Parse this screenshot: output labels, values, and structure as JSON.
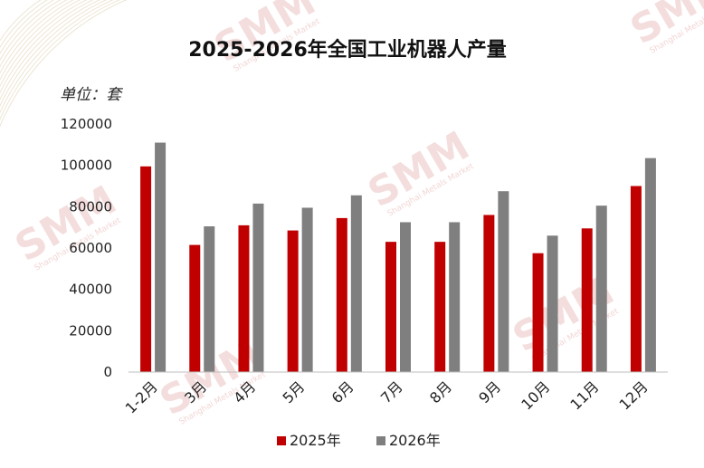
{
  "watermark": {
    "brand": "SMM",
    "tagline": "Shanghai Metals Market"
  },
  "chart_data": {
    "type": "bar",
    "title": "2025-2026年全国工业机器人产量",
    "unit_label": "单位：套",
    "categories": [
      "1-2月",
      "3月",
      "4月",
      "5月",
      "6月",
      "7月",
      "8月",
      "9月",
      "10月",
      "11月",
      "12月"
    ],
    "series": [
      {
        "name": "2025年",
        "color": "#c00000",
        "values": [
          99500,
          61500,
          71000,
          68500,
          74500,
          63000,
          63000,
          76000,
          57500,
          69500,
          90000
        ]
      },
      {
        "name": "2026年",
        "color": "#7f7f7f",
        "values": [
          111000,
          70500,
          81500,
          79500,
          85500,
          72500,
          72500,
          87500,
          66000,
          80500,
          103500
        ]
      }
    ],
    "y_ticks": [
      "0",
      "20000",
      "40000",
      "60000",
      "80000",
      "100000",
      "120000"
    ],
    "ylim": [
      0,
      120000
    ],
    "grid": false,
    "legend_position": "bottom"
  }
}
